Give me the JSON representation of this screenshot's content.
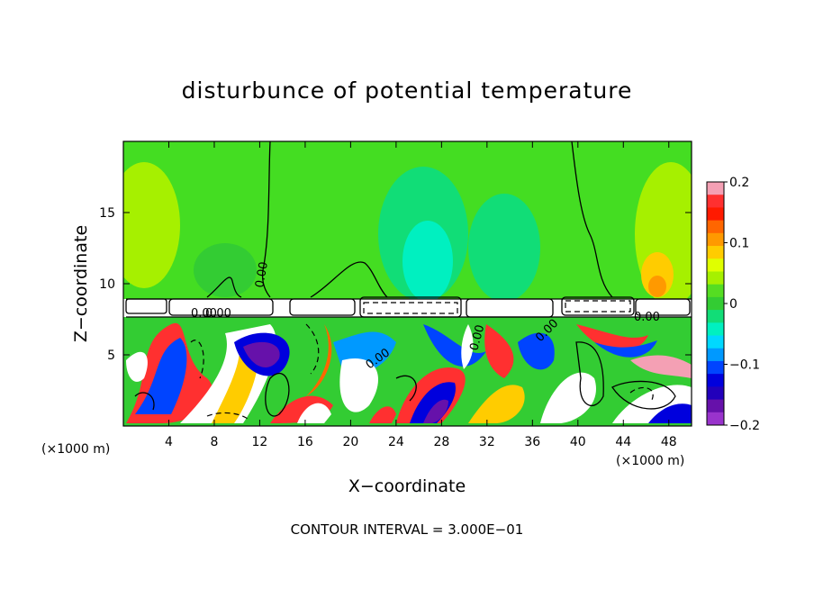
{
  "chart_data": {
    "type": "heatmap",
    "title": "disturbunce of potential temperature",
    "xlabel": "X−coordinate",
    "ylabel": "Z−coordinate",
    "x_unit": "(×1000 m)",
    "xlim": [
      0,
      50
    ],
    "ylim": [
      0,
      20
    ],
    "x_ticks": [
      4,
      8,
      12,
      16,
      20,
      24,
      28,
      32,
      36,
      40,
      44,
      48
    ],
    "y_ticks": [
      5,
      10,
      15
    ],
    "colorbar": {
      "range": [
        -0.2,
        0.2
      ],
      "ticks": [
        "0.2",
        "0.1",
        "0",
        "−0.1",
        "−0.2"
      ],
      "colors": [
        "#f4a0b4",
        "#ff3030",
        "#ff1a00",
        "#ff6600",
        "#ff9900",
        "#ffcc00",
        "#e0ff00",
        "#a6f000",
        "#55dd22",
        "#33cc33",
        "#11dd77",
        "#00f0c0",
        "#00d8ff",
        "#0099ff",
        "#0044ff",
        "#0000dd",
        "#2200bb",
        "#6611aa",
        "#9933cc"
      ]
    },
    "contour_labels": [
      "0.00",
      "0.00",
      "0.00",
      "0.00",
      "0.00",
      "0.00",
      "0.00"
    ],
    "footer": "CONTOUR INTERVAL = 3.000E−01"
  }
}
